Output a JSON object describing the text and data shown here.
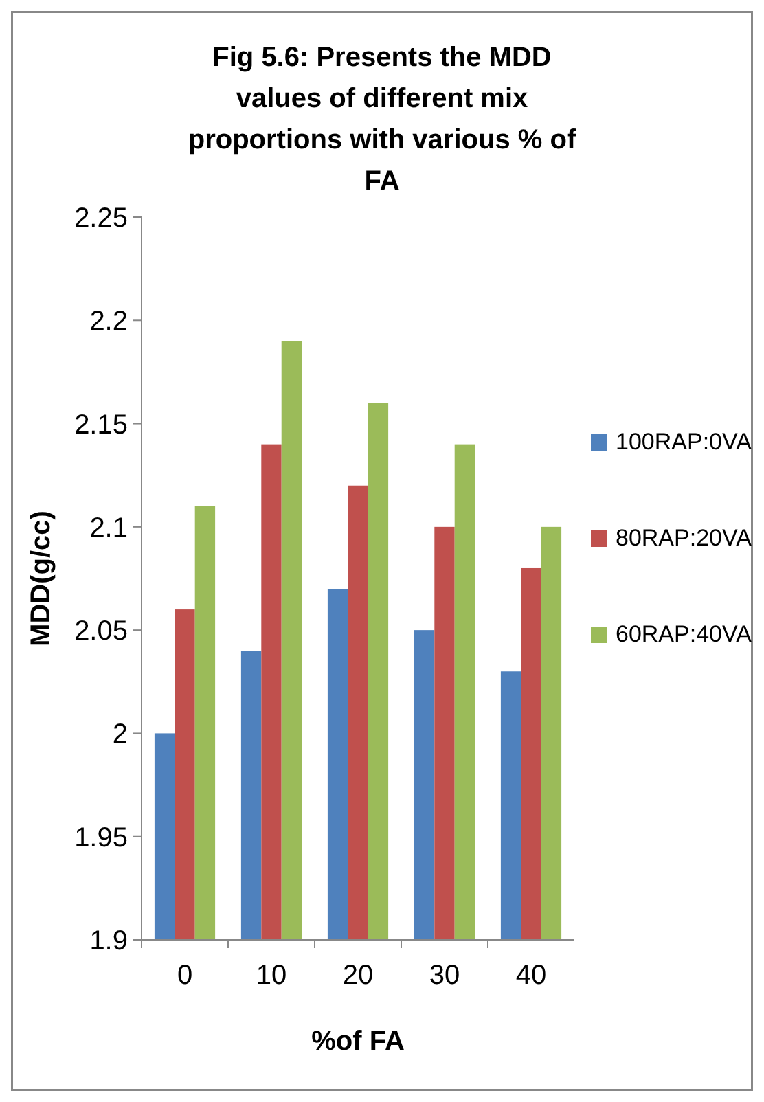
{
  "chart_data": {
    "type": "bar",
    "title": "Fig 5.6: Presents the MDD values of  different mix proportions with various % of FA",
    "xlabel": "%of FA",
    "ylabel": "MDD(g/cc)",
    "categories": [
      "0",
      "10",
      "20",
      "30",
      "40"
    ],
    "series": [
      {
        "name": "100RAP:0VA",
        "color": "#4f81bd",
        "values": [
          2.0,
          2.04,
          2.07,
          2.05,
          2.03
        ]
      },
      {
        "name": "80RAP:20VA",
        "color": "#c0504d",
        "values": [
          2.06,
          2.14,
          2.12,
          2.1,
          2.08
        ]
      },
      {
        "name": "60RAP:40VA",
        "color": "#9bbb59",
        "values": [
          2.11,
          2.19,
          2.16,
          2.14,
          2.1
        ]
      }
    ],
    "ylim": [
      1.9,
      2.25
    ],
    "yticks": [
      1.9,
      1.95,
      2,
      2.05,
      2.1,
      2.15,
      2.2,
      2.25
    ],
    "legend": "right"
  }
}
